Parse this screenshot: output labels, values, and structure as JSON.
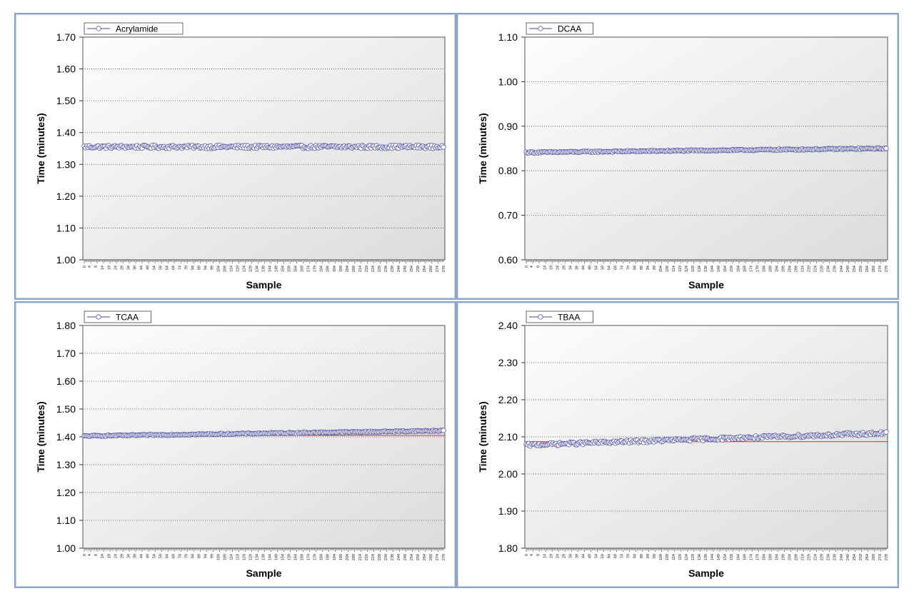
{
  "chart_data": [
    {
      "type": "scatter",
      "title": "",
      "xlabel": "Sample",
      "ylabel": "Time (minutes)",
      "ylim": [
        1.0,
        1.7
      ],
      "yticks": [
        "1.00",
        "1.10",
        "1.20",
        "1.30",
        "1.40",
        "1.50",
        "1.60",
        "1.70"
      ],
      "x_range": [
        0,
        279
      ],
      "x_tick_step": 5,
      "legend": {
        "label": "Acrylamide",
        "position": "top-left"
      },
      "grid": true,
      "reference_line": 1.352,
      "series": [
        {
          "name": "Acrylamide",
          "start": 1.355,
          "end": 1.355,
          "jitter": 0.005
        }
      ]
    },
    {
      "type": "scatter",
      "title": "",
      "xlabel": "Sample",
      "ylabel": "Time (minutes)",
      "ylim": [
        0.6,
        1.1
      ],
      "yticks": [
        "0.60",
        "0.70",
        "0.80",
        "0.90",
        "1.00",
        "1.10"
      ],
      "x_range": [
        0,
        279
      ],
      "x_tick_step": 5,
      "legend": {
        "label": "DCAA",
        "position": "top-left"
      },
      "grid": true,
      "reference_line": 0.845,
      "series": [
        {
          "name": "DCAA",
          "start": 0.841,
          "end": 0.85,
          "jitter": 0.0015
        }
      ]
    },
    {
      "type": "scatter",
      "title": "",
      "xlabel": "Sample",
      "ylabel": "Time (minutes)",
      "ylim": [
        1.0,
        1.8
      ],
      "yticks": [
        "1.00",
        "1.10",
        "1.20",
        "1.30",
        "1.40",
        "1.50",
        "1.60",
        "1.70",
        "1.80"
      ],
      "x_range": [
        0,
        279
      ],
      "x_tick_step": 5,
      "legend": {
        "label": "TCAA",
        "position": "top-left"
      },
      "grid": true,
      "reference_line": 1.405,
      "series": [
        {
          "name": "TCAA",
          "start": 1.403,
          "end": 1.422,
          "jitter": 0.002
        }
      ]
    },
    {
      "type": "scatter",
      "title": "",
      "xlabel": "Sample",
      "ylabel": "Time (minutes)",
      "ylim": [
        1.8,
        2.4
      ],
      "yticks": [
        "1.80",
        "1.90",
        "2.00",
        "2.10",
        "2.20",
        "2.30",
        "2.40"
      ],
      "x_range": [
        0,
        279
      ],
      "x_tick_step": 5,
      "legend": {
        "label": "TBAA",
        "position": "top-left"
      },
      "grid": true,
      "reference_line": 2.087,
      "series": [
        {
          "name": "TBAA",
          "start": 2.078,
          "end": 2.11,
          "jitter": 0.004
        }
      ]
    }
  ],
  "colors": {
    "marker_stroke": "#5a5aa8",
    "marker_fill": "#ffffff",
    "series_line": "#4a4a9a",
    "reference_line": "#d03030",
    "grid": "#444444",
    "plot_bg_top": "#fdfdfd",
    "plot_bg_bottom": "#dcdcdc"
  }
}
